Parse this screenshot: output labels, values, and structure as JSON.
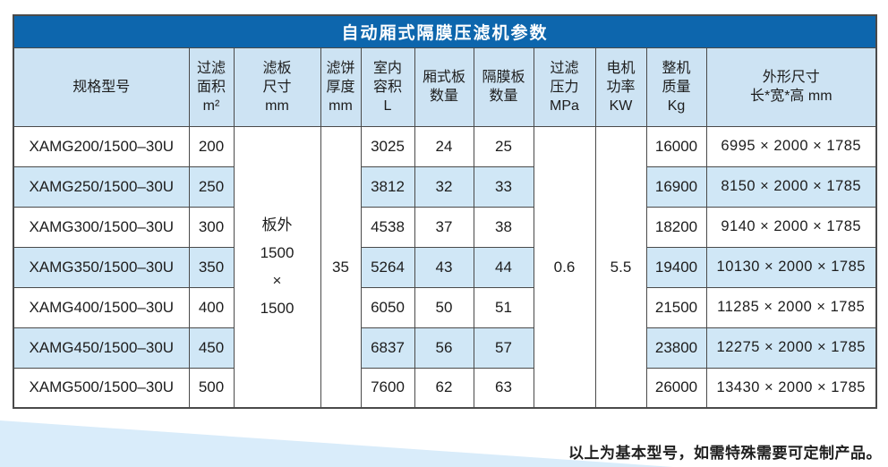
{
  "title": "自动厢式隔膜压滤机参数",
  "table": {
    "headers": [
      "规格型号",
      "过滤\n面积\nm²",
      "滤板\n尺寸\nmm",
      "滤饼\n厚度\nmm",
      "室内\n容积\nL",
      "厢式板\n数量",
      "隔膜板\n数量",
      "过滤\n压力\nMPa",
      "电机\n功率\nKW",
      "整机\n质量\nKg",
      "外形尺寸\n长*宽*高 mm"
    ],
    "merged": {
      "plate_size": "板外\n1500\n×\n1500",
      "cake_thickness": "35",
      "pressure": "0.6",
      "motor_power": "5.5"
    },
    "rows": [
      {
        "model": "XAMG200/1500–30U",
        "area": "200",
        "volume": "3025",
        "chamber_plates": "24",
        "diaphragm_plates": "25",
        "weight": "16000",
        "dimensions": "6995 × 2000 × 1785"
      },
      {
        "model": "XAMG250/1500–30U",
        "area": "250",
        "volume": "3812",
        "chamber_plates": "32",
        "diaphragm_plates": "33",
        "weight": "16900",
        "dimensions": "8150 × 2000 × 1785"
      },
      {
        "model": "XAMG300/1500–30U",
        "area": "300",
        "volume": "4538",
        "chamber_plates": "37",
        "diaphragm_plates": "38",
        "weight": "18200",
        "dimensions": "9140 × 2000 × 1785"
      },
      {
        "model": "XAMG350/1500–30U",
        "area": "350",
        "volume": "5264",
        "chamber_plates": "43",
        "diaphragm_plates": "44",
        "weight": "19400",
        "dimensions": "10130 × 2000 × 1785"
      },
      {
        "model": "XAMG400/1500–30U",
        "area": "400",
        "volume": "6050",
        "chamber_plates": "50",
        "diaphragm_plates": "51",
        "weight": "21500",
        "dimensions": "11285 × 2000 × 1785"
      },
      {
        "model": "XAMG450/1500–30U",
        "area": "450",
        "volume": "6837",
        "chamber_plates": "56",
        "diaphragm_plates": "57",
        "weight": "23800",
        "dimensions": "12275 × 2000 × 1785"
      },
      {
        "model": "XAMG500/1500–30U",
        "area": "500",
        "volume": "7600",
        "chamber_plates": "62",
        "diaphragm_plates": "63",
        "weight": "26000",
        "dimensions": "13430 × 2000 × 1785"
      }
    ]
  },
  "footer_note": "以上为基本型号，如需特殊需要可定制产品。",
  "colors": {
    "title_bar": "#0d66ad",
    "header_bg": "#cde3f3",
    "stripe_bg": "#d0e7f6",
    "border": "#4a4a4a",
    "wedge": "#d9ecfa"
  }
}
